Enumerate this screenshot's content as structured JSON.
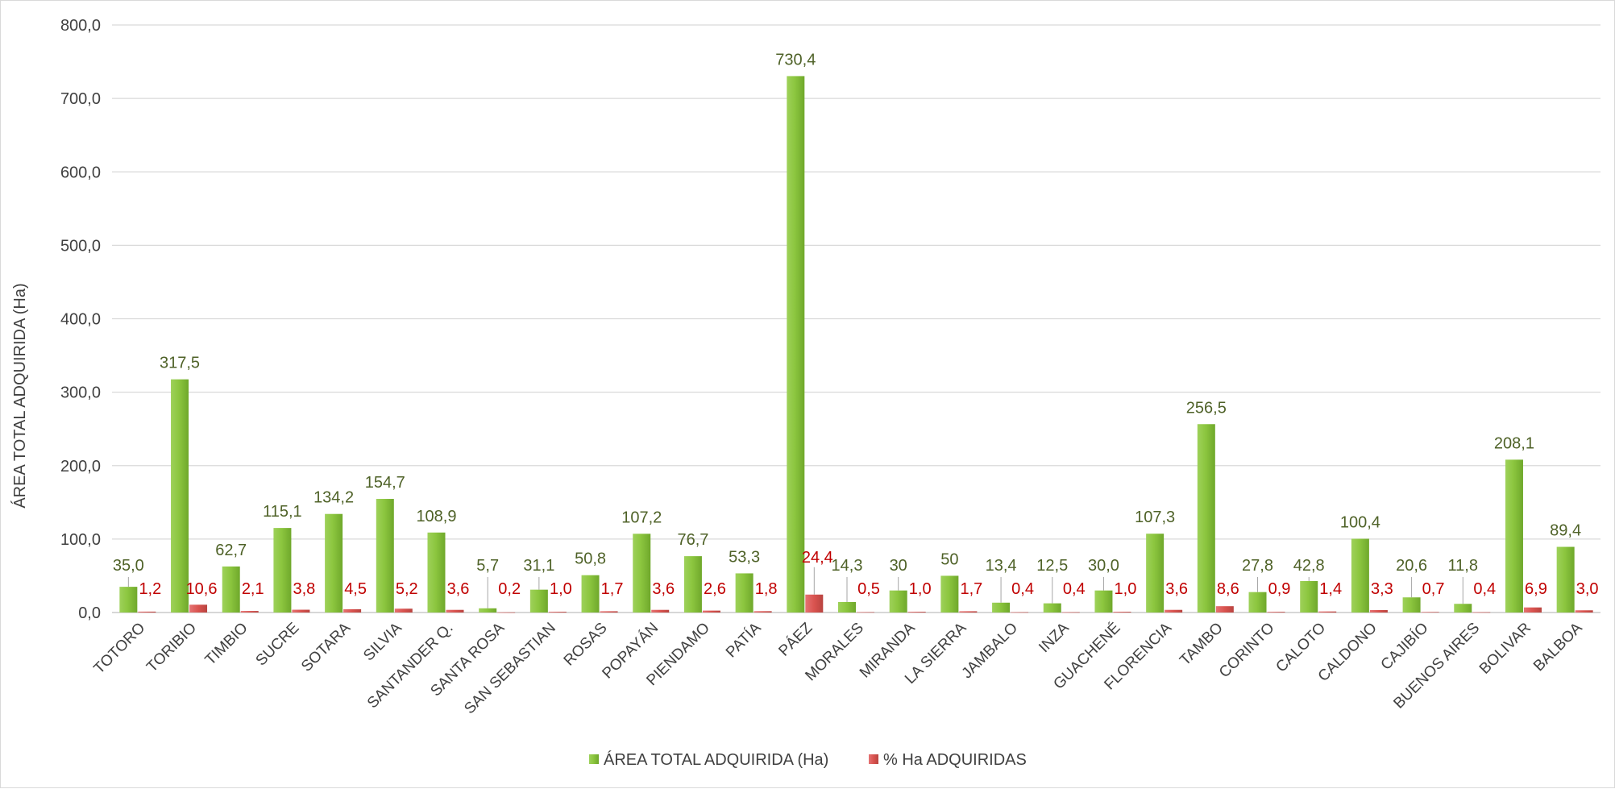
{
  "chart_data": {
    "type": "bar",
    "ylabel": "ÁREA TOTAL ADQUIRIDA (Ha)",
    "xlabel": "",
    "ylim": [
      0,
      800
    ],
    "yticks": [
      "0,0",
      "100,0",
      "200,0",
      "300,0",
      "400,0",
      "500,0",
      "600,0",
      "700,0",
      "800,0"
    ],
    "grid": true,
    "legend_position": "bottom",
    "categories": [
      "TOTORO",
      "TORIBIO",
      "TIMBIO",
      "SUCRE",
      "SOTARA",
      "SILVIA",
      "SANTANDER Q.",
      "SANTA ROSA",
      "SAN SEBASTIAN",
      "ROSAS",
      "POPAYÁN",
      "PIENDAMO",
      "PATÍA",
      "PÁEZ",
      "MORALES",
      "MIRANDA",
      "LA SIERRA",
      "JAMBALO",
      "INZA",
      "GUACHENÉ",
      "FLORENCIA",
      "TAMBO",
      "CORINTO",
      "CALOTO",
      "CALDONO",
      "CAJIBÍO",
      "BUENOS AIRES",
      "BOLIVAR",
      "BALBOA"
    ],
    "series": [
      {
        "name": "ÁREA TOTAL ADQUIRIDA (Ha)",
        "color": "#8cc63f",
        "values": [
          35.0,
          317.5,
          62.7,
          115.1,
          134.2,
          154.7,
          108.9,
          5.7,
          31.1,
          50.8,
          107.2,
          76.7,
          53.3,
          730.4,
          14.3,
          30,
          50,
          13.4,
          12.5,
          30.0,
          107.3,
          256.5,
          27.8,
          42.8,
          100.4,
          20.6,
          11.8,
          208.1,
          89.4
        ],
        "labels": [
          "35,0",
          "317,5",
          "62,7",
          "115,1",
          "134,2",
          "154,7",
          "108,9",
          "5,7",
          "31,1",
          "50,8",
          "107,2",
          "76,7",
          "53,3",
          "730,4",
          "14,3",
          "30",
          "50",
          "13,4",
          "12,5",
          "30,0",
          "107,3",
          "256,5",
          "27,8",
          "42,8",
          "100,4",
          "20,6",
          "11,8",
          "208,1",
          "89,4"
        ]
      },
      {
        "name": "% Ha ADQUIRIDAS",
        "color": "#d9534f",
        "values": [
          1.2,
          10.6,
          2.1,
          3.8,
          4.5,
          5.2,
          3.6,
          0.2,
          1.0,
          1.7,
          3.6,
          2.6,
          1.8,
          24.4,
          0.5,
          1.0,
          1.7,
          0.4,
          0.4,
          1.0,
          3.6,
          8.6,
          0.9,
          1.4,
          3.3,
          0.7,
          0.4,
          6.9,
          3.0
        ],
        "labels": [
          "1,2",
          "10,6",
          "2,1",
          "3,8",
          "4,5",
          "5,2",
          "3,6",
          "0,2",
          "1,0",
          "1,7",
          "3,6",
          "2,6",
          "1,8",
          "24,4",
          "0,5",
          "1,0",
          "1,7",
          "0,4",
          "0,4",
          "1,0",
          "3,6",
          "8,6",
          "0,9",
          "1,4",
          "3,3",
          "0,7",
          "0,4",
          "6,9",
          "3,0"
        ]
      }
    ]
  }
}
